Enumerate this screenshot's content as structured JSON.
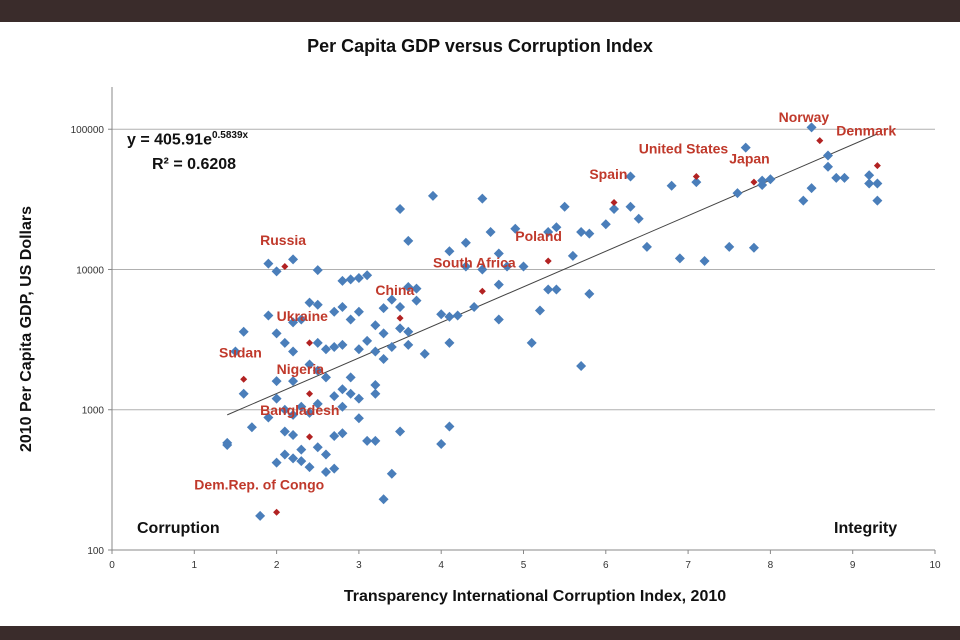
{
  "chart_data": {
    "type": "scatter",
    "title": "Per Capita GDP versus Corruption Index",
    "xlabel": "Transparency International  Corruption Index, 2010",
    "ylabel": "2010 Per Capita GDP, US Dollars",
    "xlim": [
      0,
      10
    ],
    "ylim": [
      100,
      200000
    ],
    "yscale": "log",
    "x_ticks": [
      "0",
      "1",
      "2",
      "3",
      "4",
      "5",
      "6",
      "7",
      "8",
      "9",
      "10"
    ],
    "y_ticks": [
      {
        "value": 100,
        "label": "100"
      },
      {
        "value": 1000,
        "label": "1000"
      },
      {
        "value": 10000,
        "label": "10000"
      },
      {
        "value": 100000,
        "label": "100000"
      }
    ],
    "grid": "horizontal",
    "colors": {
      "points": "#4a7eba",
      "highlight": "#b22222",
      "trend": "#444444",
      "grid": "#b0b0b0"
    },
    "trendline": {
      "equation_prefix": "y = 405.91e",
      "equation_exponent": "0.5839x",
      "r2_text": "R² = 0.6208",
      "a": 405.91,
      "b": 0.5839,
      "x_start": 1.4,
      "x_end": 9.3
    },
    "corner_labels": {
      "left": "Corruption",
      "right": "Integrity"
    },
    "highlighted": [
      {
        "name": "Norway",
        "x": 8.6,
        "y": 83000,
        "lx": 8.1,
        "ly": 113000
      },
      {
        "name": "Denmark",
        "x": 9.3,
        "y": 55000,
        "lx": 8.8,
        "ly": 90000
      },
      {
        "name": "United States",
        "x": 7.1,
        "y": 46000,
        "lx": 6.4,
        "ly": 67000
      },
      {
        "name": "Japan",
        "x": 7.8,
        "y": 42000,
        "lx": 7.5,
        "ly": 57000
      },
      {
        "name": "Spain",
        "x": 6.1,
        "y": 30000,
        "lx": 5.8,
        "ly": 44000
      },
      {
        "name": "Poland",
        "x": 5.3,
        "y": 11500,
        "lx": 4.9,
        "ly": 16000
      },
      {
        "name": "South Africa",
        "x": 4.5,
        "y": 7000,
        "lx": 3.9,
        "ly": 10300
      },
      {
        "name": "China",
        "x": 3.5,
        "y": 4500,
        "lx": 3.2,
        "ly": 6600
      },
      {
        "name": "Russia",
        "x": 2.1,
        "y": 10500,
        "lx": 1.8,
        "ly": 15000
      },
      {
        "name": "Ukraine",
        "x": 2.4,
        "y": 3000,
        "lx": 2.0,
        "ly": 4300
      },
      {
        "name": "Sudan",
        "x": 1.6,
        "y": 1650,
        "lx": 1.3,
        "ly": 2350
      },
      {
        "name": "Nigeria",
        "x": 2.4,
        "y": 1300,
        "lx": 2.0,
        "ly": 1800
      },
      {
        "name": "Bangladesh",
        "x": 2.4,
        "y": 640,
        "lx": 1.8,
        "ly": 920
      },
      {
        "name": "Dem.Rep. of Congo",
        "x": 2.0,
        "y": 186,
        "lx": 1.0,
        "ly": 270
      }
    ],
    "points": [
      [
        1.4,
        560
      ],
      [
        1.4,
        580
      ],
      [
        1.5,
        2600
      ],
      [
        1.6,
        3600
      ],
      [
        1.6,
        1300
      ],
      [
        1.7,
        750
      ],
      [
        1.8,
        175
      ],
      [
        1.9,
        11000
      ],
      [
        1.9,
        4700
      ],
      [
        1.9,
        880
      ],
      [
        2.0,
        9700
      ],
      [
        2.0,
        3500
      ],
      [
        2.0,
        1600
      ],
      [
        2.0,
        1200
      ],
      [
        2.0,
        420
      ],
      [
        2.1,
        3000
      ],
      [
        2.1,
        700
      ],
      [
        2.1,
        480
      ],
      [
        2.1,
        1000
      ],
      [
        2.2,
        11800
      ],
      [
        2.2,
        4200
      ],
      [
        2.2,
        2600
      ],
      [
        2.2,
        1600
      ],
      [
        2.2,
        920
      ],
      [
        2.2,
        660
      ],
      [
        2.2,
        450
      ],
      [
        2.3,
        4400
      ],
      [
        2.3,
        1050
      ],
      [
        2.3,
        520
      ],
      [
        2.3,
        430
      ],
      [
        2.4,
        5800
      ],
      [
        2.4,
        2100
      ],
      [
        2.4,
        950
      ],
      [
        2.4,
        390
      ],
      [
        2.5,
        5600
      ],
      [
        2.5,
        9900
      ],
      [
        2.5,
        3000
      ],
      [
        2.5,
        1900
      ],
      [
        2.5,
        1100
      ],
      [
        2.5,
        540
      ],
      [
        2.6,
        2700
      ],
      [
        2.6,
        1700
      ],
      [
        2.6,
        480
      ],
      [
        2.6,
        360
      ],
      [
        2.7,
        5000
      ],
      [
        2.7,
        2800
      ],
      [
        2.7,
        1250
      ],
      [
        2.7,
        650
      ],
      [
        2.7,
        380
      ],
      [
        2.8,
        8300
      ],
      [
        2.8,
        5400
      ],
      [
        2.8,
        2900
      ],
      [
        2.8,
        1400
      ],
      [
        2.8,
        1050
      ],
      [
        2.8,
        680
      ],
      [
        2.9,
        8500
      ],
      [
        2.9,
        4400
      ],
      [
        2.9,
        1700
      ],
      [
        2.9,
        1300
      ],
      [
        3.0,
        8700
      ],
      [
        3.0,
        5000
      ],
      [
        3.0,
        2700
      ],
      [
        3.0,
        1200
      ],
      [
        3.0,
        870
      ],
      [
        3.1,
        9100
      ],
      [
        3.1,
        3100
      ],
      [
        3.1,
        600
      ],
      [
        3.2,
        4000
      ],
      [
        3.2,
        2600
      ],
      [
        3.2,
        1500
      ],
      [
        3.2,
        1300
      ],
      [
        3.2,
        600
      ],
      [
        3.3,
        5300
      ],
      [
        3.3,
        3500
      ],
      [
        3.3,
        2300
      ],
      [
        3.3,
        230
      ],
      [
        3.4,
        6100
      ],
      [
        3.4,
        2800
      ],
      [
        3.4,
        350
      ],
      [
        3.5,
        27000
      ],
      [
        3.5,
        5400
      ],
      [
        3.5,
        3800
      ],
      [
        3.5,
        700
      ],
      [
        3.6,
        16000
      ],
      [
        3.6,
        7500
      ],
      [
        3.6,
        3600
      ],
      [
        3.6,
        2900
      ],
      [
        3.7,
        7300
      ],
      [
        3.7,
        6000
      ],
      [
        3.8,
        2500
      ],
      [
        3.9,
        33500
      ],
      [
        4.0,
        4800
      ],
      [
        4.0,
        570
      ],
      [
        4.1,
        13500
      ],
      [
        4.1,
        4600
      ],
      [
        4.1,
        3000
      ],
      [
        4.1,
        760
      ],
      [
        4.2,
        4700
      ],
      [
        4.3,
        15500
      ],
      [
        4.3,
        10500
      ],
      [
        4.4,
        5400
      ],
      [
        4.5,
        32000
      ],
      [
        4.5,
        10000
      ],
      [
        4.6,
        18500
      ],
      [
        4.7,
        13000
      ],
      [
        4.7,
        7800
      ],
      [
        4.7,
        4400
      ],
      [
        4.8,
        10500
      ],
      [
        4.9,
        19500
      ],
      [
        5.0,
        10500
      ],
      [
        5.1,
        3000
      ],
      [
        5.2,
        5100
      ],
      [
        5.3,
        18500
      ],
      [
        5.3,
        7200
      ],
      [
        5.4,
        20000
      ],
      [
        5.4,
        7200
      ],
      [
        5.5,
        28000
      ],
      [
        5.6,
        12500
      ],
      [
        5.7,
        18500
      ],
      [
        5.7,
        2050
      ],
      [
        5.8,
        18000
      ],
      [
        5.8,
        6700
      ],
      [
        6.0,
        21000
      ],
      [
        6.1,
        27000
      ],
      [
        6.3,
        46000
      ],
      [
        6.3,
        28000
      ],
      [
        6.4,
        23000
      ],
      [
        6.5,
        14500
      ],
      [
        6.8,
        39500
      ],
      [
        6.9,
        12000
      ],
      [
        7.1,
        42000
      ],
      [
        7.2,
        11500
      ],
      [
        7.5,
        14500
      ],
      [
        7.6,
        35000
      ],
      [
        7.7,
        74000
      ],
      [
        7.8,
        14300
      ],
      [
        7.9,
        40000
      ],
      [
        7.9,
        43000
      ],
      [
        8.0,
        44000
      ],
      [
        8.4,
        31000
      ],
      [
        8.5,
        103000
      ],
      [
        8.5,
        38000
      ],
      [
        8.7,
        65000
      ],
      [
        8.7,
        54000
      ],
      [
        8.8,
        45000
      ],
      [
        8.9,
        45000
      ],
      [
        9.2,
        47000
      ],
      [
        9.2,
        41000
      ],
      [
        9.3,
        41000
      ],
      [
        9.3,
        31000
      ]
    ]
  }
}
